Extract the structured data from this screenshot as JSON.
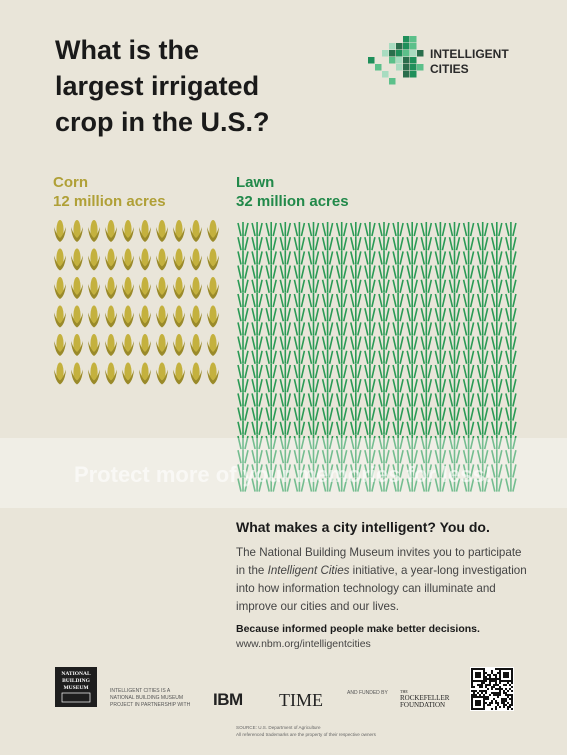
{
  "header": {
    "title_lines": [
      "What is the",
      "largest irrigated",
      "crop in the U.S.?"
    ],
    "logo": [
      "INTELLIGENT",
      "CITIES"
    ]
  },
  "comparison": [
    {
      "name": "Corn",
      "label": "12 million acres"
    },
    {
      "name": "Lawn",
      "label": "32 million acres"
    }
  ],
  "body": {
    "heading": "What makes a city intelligent? You do.",
    "paragraph": [
      [
        "The National Building Museum invites you to participate"
      ],
      [
        "in the ",
        "Intelligent Cities",
        " initiative, a year-long investigation"
      ],
      [
        "into how information technology can illuminate and"
      ],
      [
        "improve our cities and our lives."
      ]
    ],
    "tagline": "Because informed people make better decisions.",
    "url": "www.nbm.org/intelligentcities"
  },
  "footer": {
    "museum": [
      "NATIONAL",
      "BUILDING",
      "MUSEUM"
    ],
    "partnership": [
      "INTELLIGENT CITIES IS A",
      "NATIONAL BUILDING MUSEUM",
      "PROJECT IN PARTNERSHIP WITH"
    ],
    "ibm": "IBM",
    "time": "TIME",
    "funded": "AND FUNDED BY",
    "rockefeller": [
      "THE",
      "ROCKEFELLER",
      "FOUNDATION"
    ],
    "source": "SOURCE: U.S. Department of Agriculture",
    "trademark": "All referenced trademarks are the property of their respective owners"
  },
  "watermark": "Protect more of your memories for less!"
}
